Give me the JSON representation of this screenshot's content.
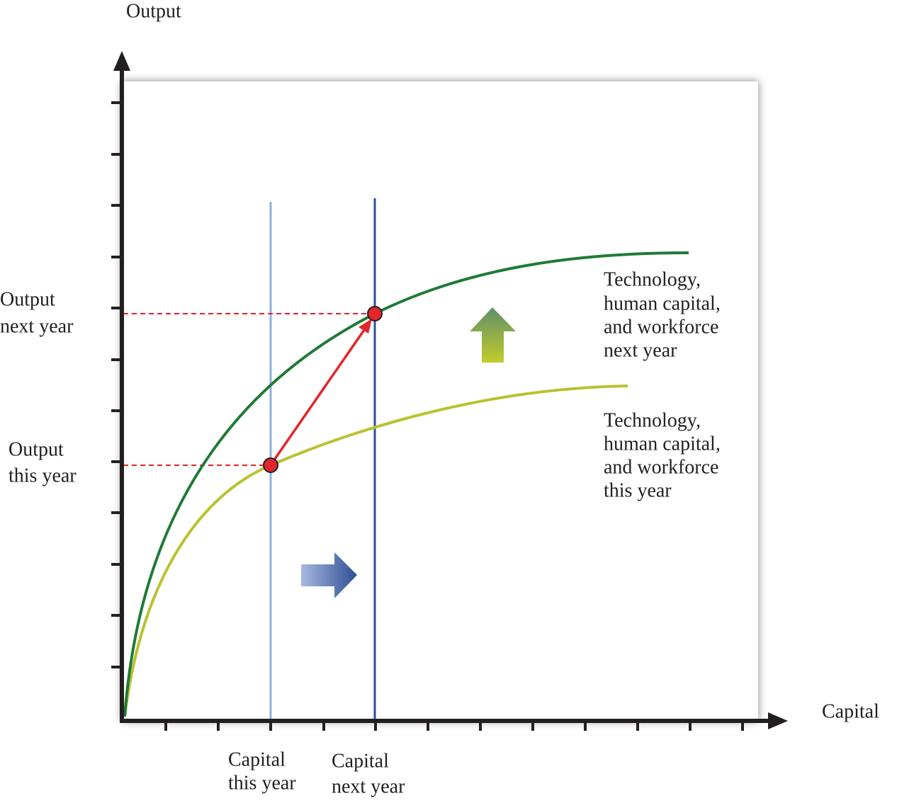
{
  "axes": {
    "y_label": "Output",
    "x_label": "Capital"
  },
  "y_labels": [
    {
      "lines": [
        "Output",
        "next year"
      ]
    },
    {
      "lines": [
        "Output",
        "this year"
      ]
    }
  ],
  "x_labels": [
    {
      "lines": [
        "Capital",
        "this year"
      ]
    },
    {
      "lines": [
        "Capital",
        "next year"
      ]
    }
  ],
  "curves": [
    {
      "lines": [
        "Technology,",
        "human capital,",
        "and workforce",
        "next year"
      ]
    },
    {
      "lines": [
        "Technology,",
        "human capital,",
        "and workforce",
        "this year"
      ]
    }
  ]
}
